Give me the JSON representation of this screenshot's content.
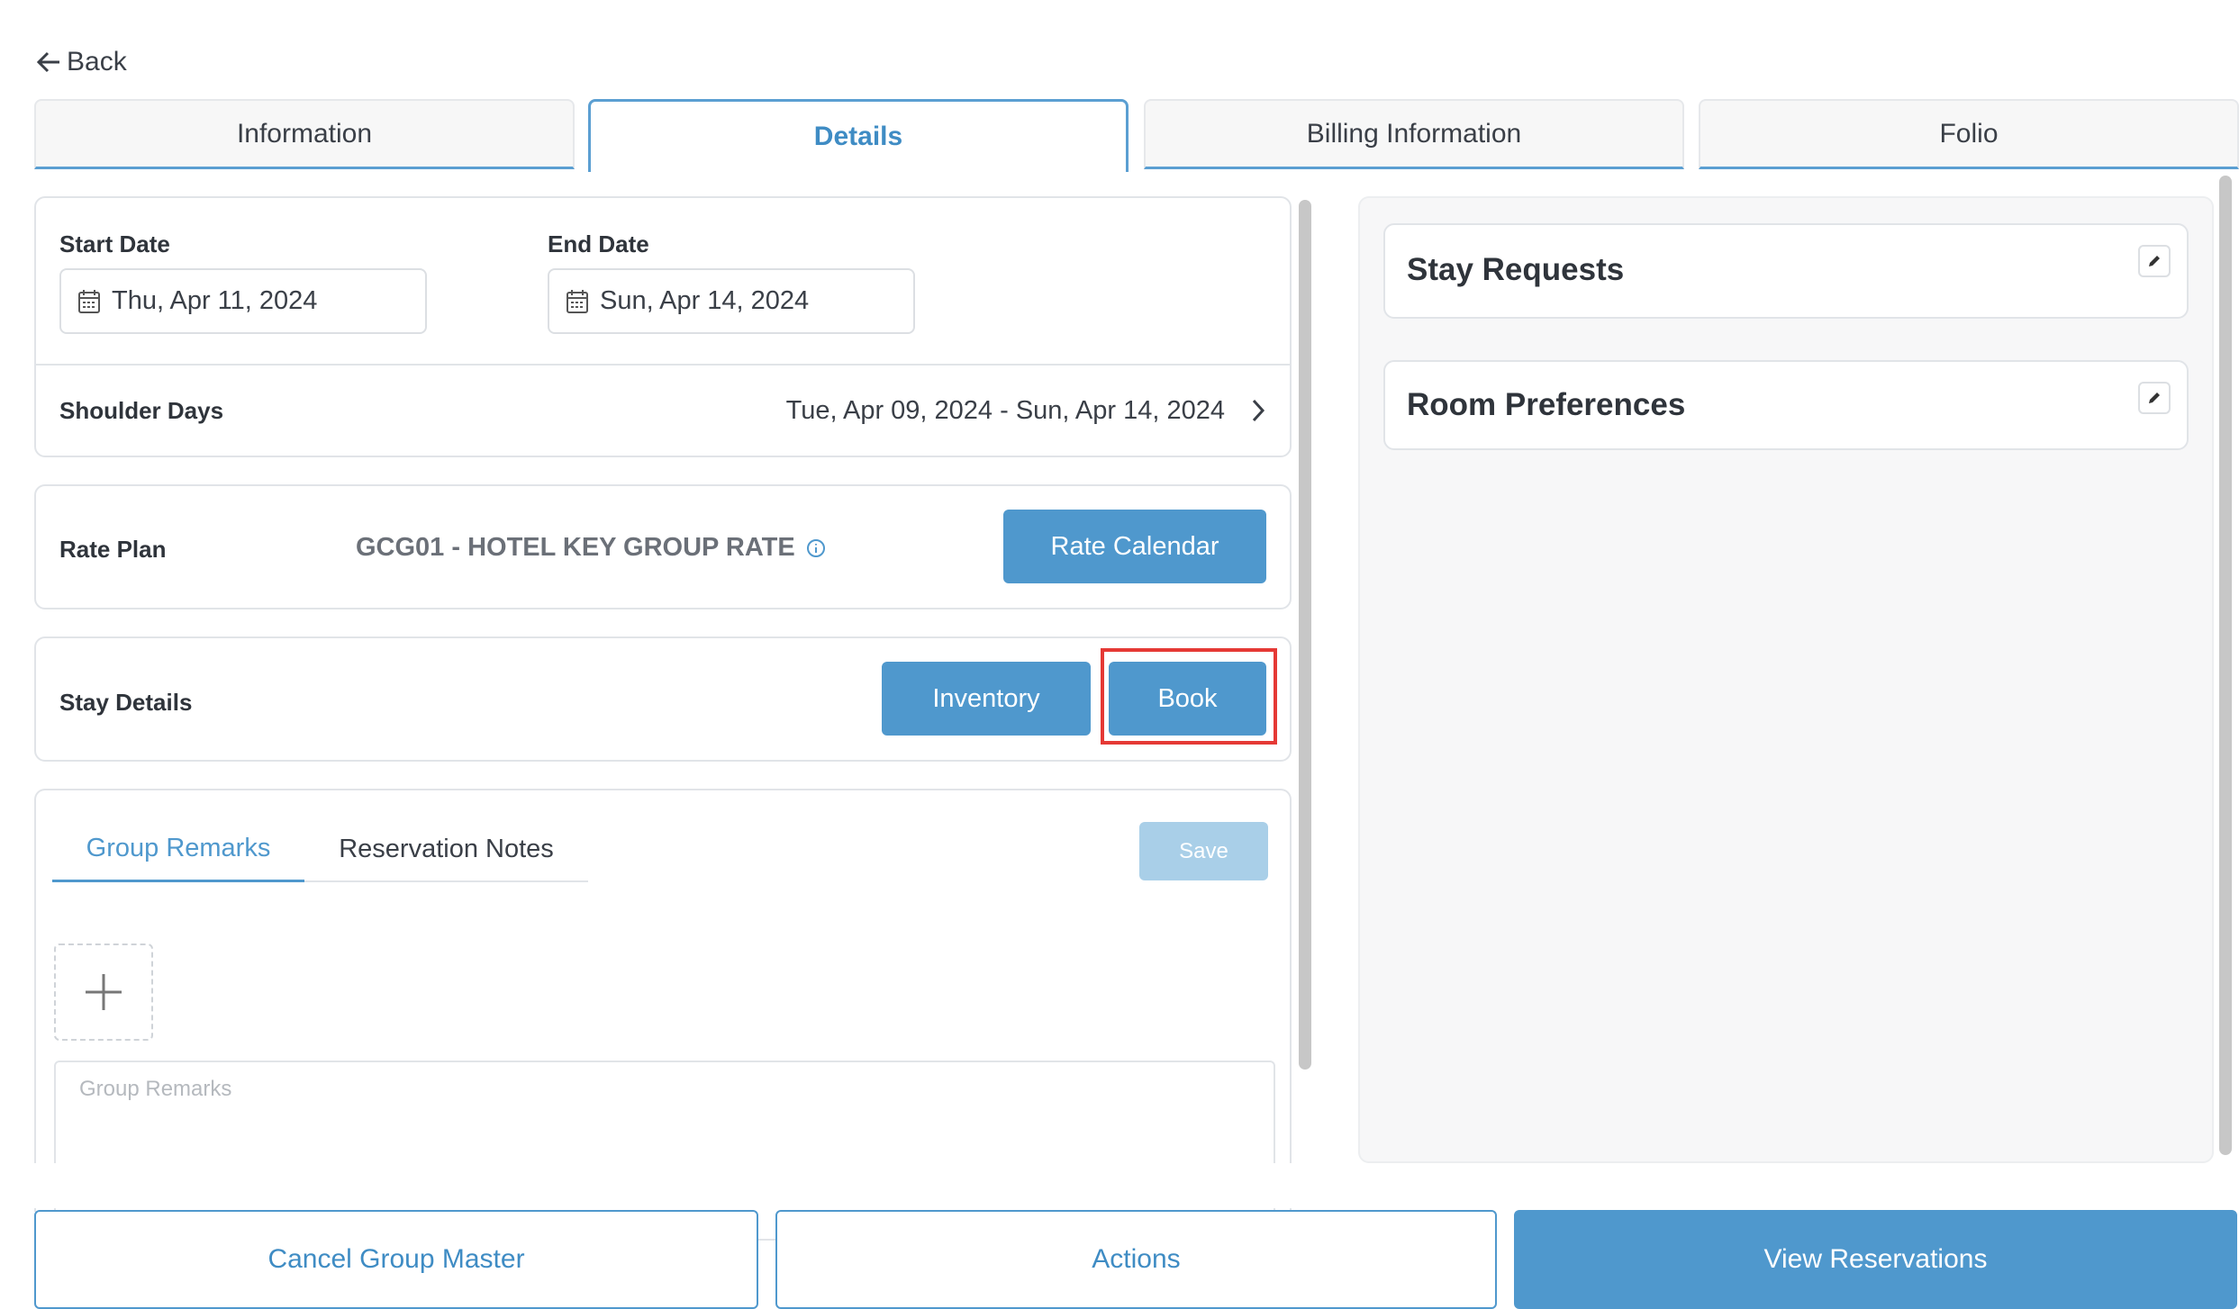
{
  "nav": {
    "back_label": "Back"
  },
  "tabs": [
    {
      "label": "Information"
    },
    {
      "label": "Details"
    },
    {
      "label": "Billing Information"
    },
    {
      "label": "Folio"
    }
  ],
  "active_tab": "Details",
  "dates": {
    "start_label": "Start Date",
    "start_value": "Thu, Apr 11, 2024",
    "end_label": "End Date",
    "end_value": "Sun, Apr 14, 2024"
  },
  "shoulder": {
    "label": "Shoulder Days",
    "value": "Tue, Apr 09, 2024 - Sun, Apr 14, 2024"
  },
  "rate_plan": {
    "label": "Rate Plan",
    "value": "GCG01 - HOTEL KEY GROUP RATE",
    "button": "Rate Calendar"
  },
  "stay_details": {
    "label": "Stay Details",
    "inventory_button": "Inventory",
    "book_button": "Book",
    "highlight_color": "#e53935"
  },
  "remarks": {
    "tabs": [
      {
        "label": "Group Remarks"
      },
      {
        "label": "Reservation Notes"
      }
    ],
    "save_button": "Save",
    "placeholder": "Group Remarks"
  },
  "right_panel": {
    "stay_requests": "Stay Requests",
    "room_preferences": "Room Preferences"
  },
  "footer": {
    "cancel": "Cancel Group Master",
    "actions": "Actions",
    "view": "View Reservations"
  },
  "colors": {
    "accent": "#4f98cd",
    "save_disabled": "#a9cfe8"
  }
}
